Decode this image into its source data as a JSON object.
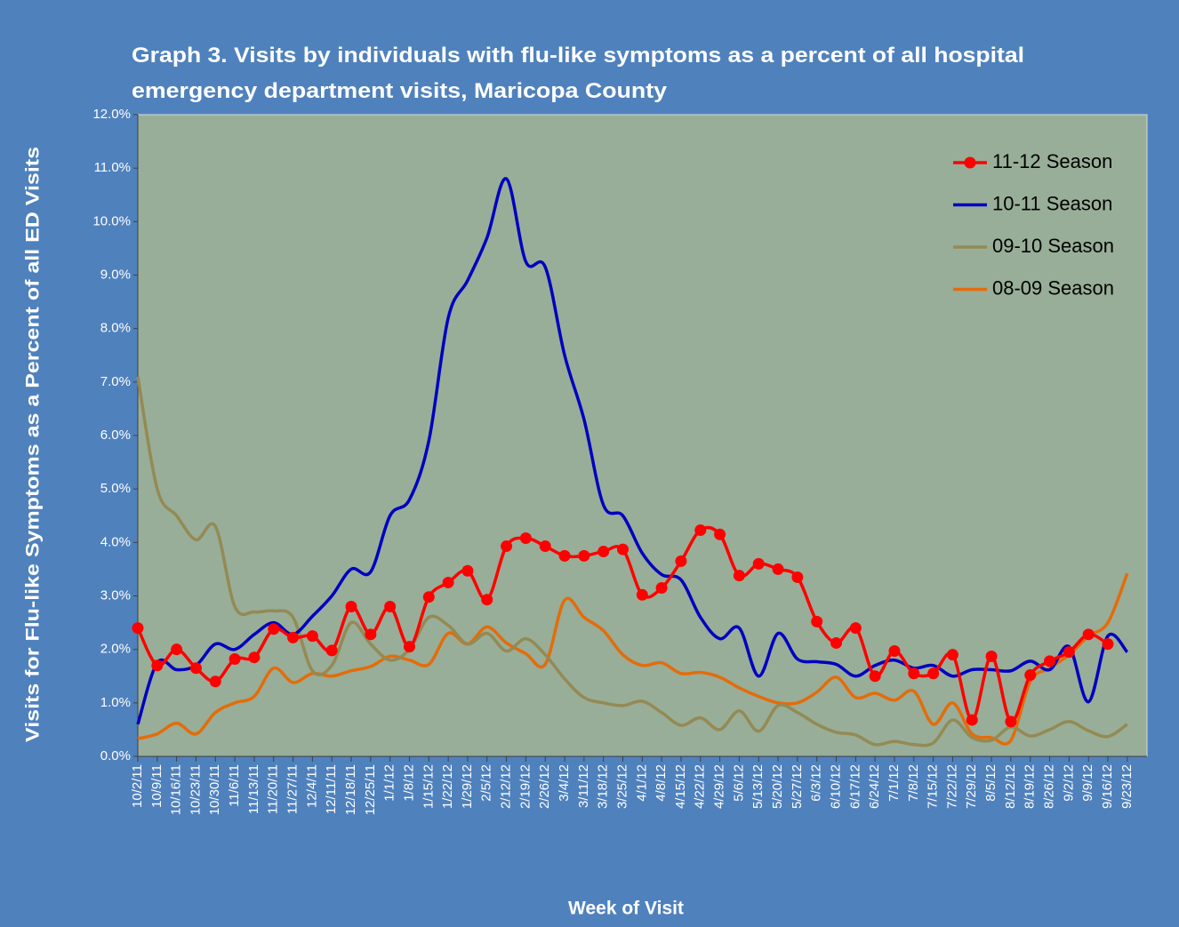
{
  "chart_data": {
    "type": "line",
    "title": [
      "Graph 3. Visits by individuals  with flu-like symptoms as a percent of all hospital",
      "emergency department visits, Maricopa County"
    ],
    "x_label": "Week of Visit",
    "y_label": "Visits for Flu-like Symptoms as a Percent of all ED Visits",
    "categories": [
      "10/2/11",
      "10/9/11",
      "10/16/11",
      "10/23/11",
      "10/30/11",
      "11/6/11",
      "11/13/11",
      "11/20/11",
      "11/27/11",
      "12/4/11",
      "12/11/11",
      "12/18/11",
      "12/25/11",
      "1/1/12",
      "1/8/12",
      "1/15/12",
      "1/22/12",
      "1/29/12",
      "2/5/12",
      "2/12/12",
      "2/19/12",
      "2/26/12",
      "3/4/12",
      "3/11/12",
      "3/18/12",
      "3/25/12",
      "4/1/12",
      "4/8/12",
      "4/15/12",
      "4/22/12",
      "4/29/12",
      "5/6/12",
      "5/13/12",
      "5/20/12",
      "5/27/12",
      "6/3/12",
      "6/10/12",
      "6/17/12",
      "6/24/12",
      "7/1/12",
      "7/8/12",
      "7/15/12",
      "7/22/12",
      "7/29/12",
      "8/5/12",
      "8/12/12",
      "8/19/12",
      "8/26/12",
      "9/2/12",
      "9/9/12",
      "9/16/12",
      "9/23/12"
    ],
    "series": [
      {
        "name": "11-12 Season",
        "color": "#ff0000",
        "markers": true,
        "values": [
          2.4,
          1.7,
          2.0,
          1.65,
          1.4,
          1.82,
          1.85,
          2.38,
          2.22,
          2.25,
          1.98,
          2.8,
          2.28,
          2.8,
          2.05,
          2.98,
          3.25,
          3.47,
          2.93,
          3.93,
          4.08,
          3.93,
          3.75,
          3.75,
          3.83,
          3.87,
          3.02,
          3.15,
          3.65,
          4.23,
          4.15,
          3.38,
          3.6,
          3.5,
          3.35,
          2.52,
          2.12,
          2.4,
          1.5,
          1.97,
          1.55,
          1.55,
          1.9,
          0.68,
          1.87,
          0.65,
          1.52,
          1.78,
          1.95,
          2.28,
          2.1,
          null
        ]
      },
      {
        "name": "10-11 Season",
        "color": "#0000c0",
        "markers": false,
        "values": [
          0.6,
          1.75,
          1.62,
          1.7,
          2.1,
          2.0,
          2.28,
          2.5,
          2.28,
          2.62,
          3.0,
          3.5,
          3.45,
          4.5,
          4.8,
          5.9,
          8.2,
          8.9,
          9.7,
          10.8,
          9.25,
          9.15,
          7.5,
          6.3,
          4.7,
          4.5,
          3.8,
          3.4,
          3.3,
          2.6,
          2.2,
          2.4,
          1.5,
          2.3,
          1.82,
          1.77,
          1.72,
          1.5,
          1.7,
          1.8,
          1.65,
          1.7,
          1.5,
          1.62,
          1.62,
          1.6,
          1.78,
          1.62,
          2.05,
          1.02,
          2.25,
          1.95
        ]
      },
      {
        "name": "09-10 Season",
        "color": "#948a54",
        "markers": false,
        "values": [
          7.1,
          5.0,
          4.5,
          4.05,
          4.3,
          2.8,
          2.7,
          2.72,
          2.6,
          1.6,
          1.7,
          2.5,
          2.1,
          1.8,
          2.0,
          2.6,
          2.45,
          2.1,
          2.3,
          1.97,
          2.2,
          1.9,
          1.45,
          1.1,
          1.0,
          0.95,
          1.03,
          0.82,
          0.58,
          0.72,
          0.5,
          0.85,
          0.47,
          0.95,
          0.82,
          0.6,
          0.45,
          0.4,
          0.22,
          0.28,
          0.22,
          0.25,
          0.68,
          0.35,
          0.3,
          0.55,
          0.38,
          0.5,
          0.65,
          0.48,
          0.37,
          0.6
        ]
      },
      {
        "name": "08-09 Season",
        "color": "#e46c0a",
        "markers": false,
        "values": [
          0.33,
          0.42,
          0.62,
          0.42,
          0.82,
          1.0,
          1.12,
          1.65,
          1.38,
          1.55,
          1.5,
          1.6,
          1.68,
          1.87,
          1.8,
          1.72,
          2.3,
          2.1,
          2.42,
          2.12,
          1.92,
          1.72,
          2.92,
          2.6,
          2.35,
          1.9,
          1.7,
          1.75,
          1.55,
          1.57,
          1.48,
          1.28,
          1.12,
          1.0,
          1.0,
          1.2,
          1.48,
          1.1,
          1.18,
          1.05,
          1.22,
          0.6,
          1.0,
          0.42,
          0.35,
          0.3,
          1.4,
          1.65,
          1.9,
          2.25,
          2.5,
          3.42
        ]
      }
    ],
    "ylim": [
      0,
      12
    ],
    "yticks": [
      {
        "value": 0,
        "label": "0.0%"
      },
      {
        "value": 1,
        "label": "1.0%"
      },
      {
        "value": 2,
        "label": "2.0%"
      },
      {
        "value": 3,
        "label": "3.0%"
      },
      {
        "value": 4,
        "label": "4.0%"
      },
      {
        "value": 5,
        "label": "5.0%"
      },
      {
        "value": 6,
        "label": "6.0%"
      },
      {
        "value": 7,
        "label": "7.0%"
      },
      {
        "value": 8,
        "label": "8.0%"
      },
      {
        "value": 9,
        "label": "9.0%"
      },
      {
        "value": 10,
        "label": "10.0%"
      },
      {
        "value": 11,
        "label": "11.0%"
      },
      {
        "value": 12,
        "label": "12.0%"
      }
    ],
    "grid": false,
    "legend": "top-right"
  }
}
